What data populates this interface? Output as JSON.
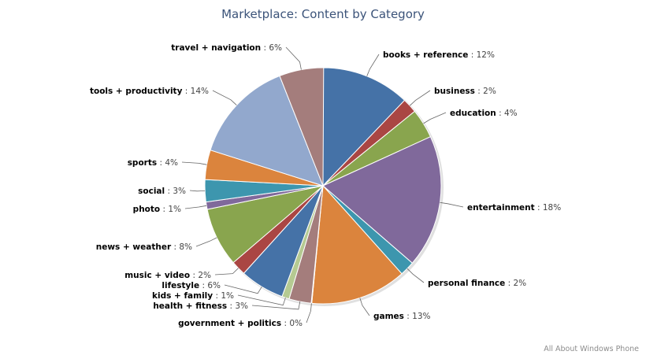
{
  "chart_data": {
    "type": "pie",
    "title": "Marketplace: Content by Category",
    "credit": "All About Windows Phone",
    "value_suffix": "%",
    "slices": [
      {
        "name": "books + reference",
        "value": 12,
        "color": "#4572a7"
      },
      {
        "name": "business",
        "value": 2,
        "color": "#aa4643"
      },
      {
        "name": "education",
        "value": 4,
        "color": "#89a54e"
      },
      {
        "name": "entertainment",
        "value": 18,
        "color": "#80699b"
      },
      {
        "name": "personal finance",
        "value": 2,
        "color": "#3d96ae"
      },
      {
        "name": "games",
        "value": 13,
        "color": "#db843d"
      },
      {
        "name": "government + politics",
        "value": 0,
        "color": "#92a8cd"
      },
      {
        "name": "health + fitness",
        "value": 3,
        "color": "#a47d7c"
      },
      {
        "name": "kids + family",
        "value": 1,
        "color": "#b5ca92"
      },
      {
        "name": "lifestyle",
        "value": 6,
        "color": "#4572a7"
      },
      {
        "name": "music + video",
        "value": 2,
        "color": "#aa4643"
      },
      {
        "name": "news + weather",
        "value": 8,
        "color": "#89a54e"
      },
      {
        "name": "photo",
        "value": 1,
        "color": "#80699b"
      },
      {
        "name": "social",
        "value": 3,
        "color": "#3d96ae"
      },
      {
        "name": "sports",
        "value": 4,
        "color": "#db843d"
      },
      {
        "name": "tools + productivity",
        "value": 14,
        "color": "#92a8cd"
      },
      {
        "name": "travel + navigation",
        "value": 6,
        "color": "#a47d7c"
      }
    ]
  }
}
